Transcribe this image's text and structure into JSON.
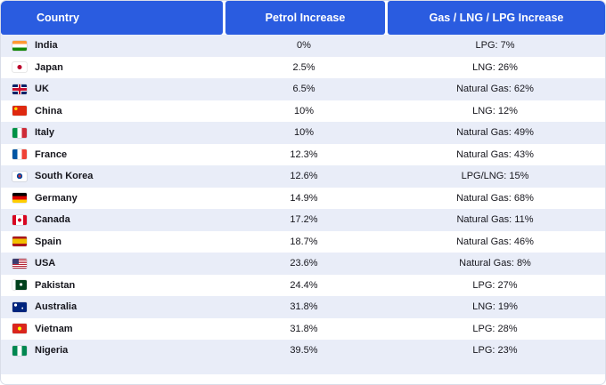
{
  "colors": {
    "header_bg": "#2a5ce0",
    "header_text": "#ffffff",
    "row_alt": "#e9edf8",
    "body_text": "#16161d"
  },
  "chart_data": {
    "type": "table",
    "columns": [
      {
        "label": "Country"
      },
      {
        "label": "Petrol Increase"
      },
      {
        "label": "Gas / LNG / LPG Increase"
      }
    ],
    "rows": [
      {
        "flag": "in",
        "country": "India",
        "petrol": "0%",
        "gas": "LPG: 7%"
      },
      {
        "flag": "jp",
        "country": "Japan",
        "petrol": "2.5%",
        "gas": "LNG: 26%"
      },
      {
        "flag": "gb",
        "country": "UK",
        "petrol": "6.5%",
        "gas": "Natural Gas: 62%"
      },
      {
        "flag": "cn",
        "country": "China",
        "petrol": "10%",
        "gas": "LNG: 12%"
      },
      {
        "flag": "it",
        "country": "Italy",
        "petrol": "10%",
        "gas": "Natural Gas: 49%"
      },
      {
        "flag": "fr",
        "country": "France",
        "petrol": "12.3%",
        "gas": "Natural Gas: 43%"
      },
      {
        "flag": "kr",
        "country": "South Korea",
        "petrol": "12.6%",
        "gas": "LPG/LNG: 15%"
      },
      {
        "flag": "de",
        "country": "Germany",
        "petrol": "14.9%",
        "gas": "Natural Gas: 68%"
      },
      {
        "flag": "ca",
        "country": "Canada",
        "petrol": "17.2%",
        "gas": "Natural Gas: 11%"
      },
      {
        "flag": "es",
        "country": "Spain",
        "petrol": "18.7%",
        "gas": "Natural Gas: 46%"
      },
      {
        "flag": "us",
        "country": "USA",
        "petrol": "23.6%",
        "gas": "Natural Gas: 8%"
      },
      {
        "flag": "pk",
        "country": "Pakistan",
        "petrol": "24.4%",
        "gas": "LPG: 27%"
      },
      {
        "flag": "au",
        "country": "Australia",
        "petrol": "31.8%",
        "gas": "LNG: 19%"
      },
      {
        "flag": "vn",
        "country": "Vietnam",
        "petrol": "31.8%",
        "gas": "LPG: 28%"
      },
      {
        "flag": "ng",
        "country": "Nigeria",
        "petrol": "39.5%",
        "gas": "LPG: 23%"
      }
    ]
  }
}
